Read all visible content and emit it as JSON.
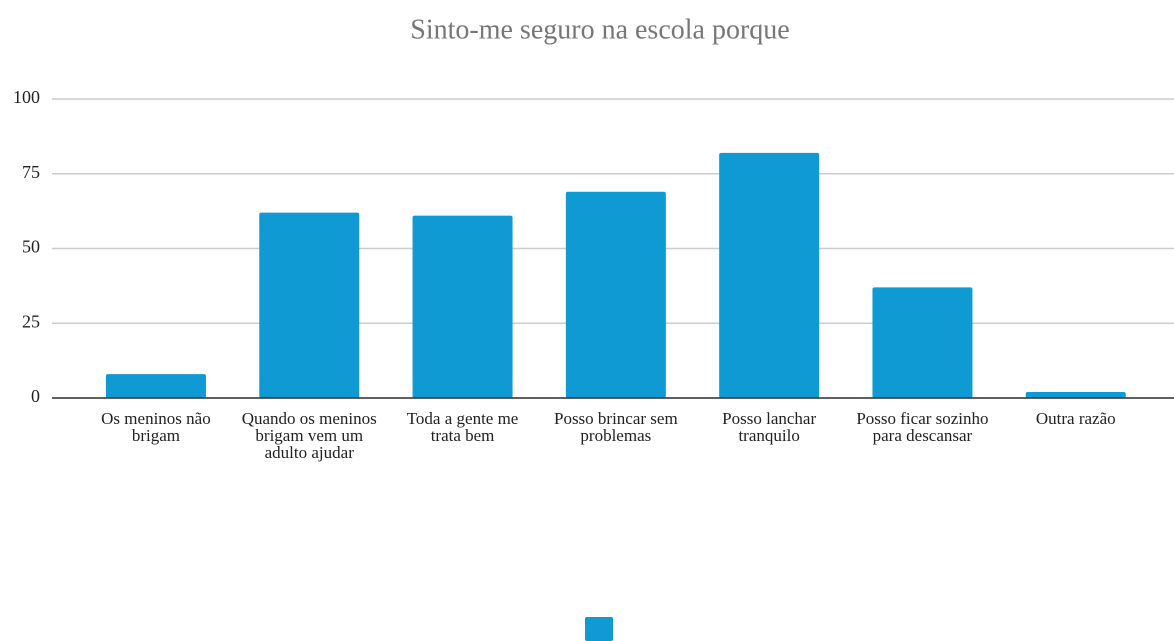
{
  "chart_data": {
    "type": "bar",
    "title": "Sinto-me seguro na escola porque",
    "categories": [
      "Os meninos não brigam",
      "Quando os meninos brigam vem um adulto ajudar",
      "Toda a gente me trata bem",
      "Posso brincar sem problemas",
      "Posso lanchar tranquilo",
      "Posso ficar sozinho para descansar",
      "Outra razão"
    ],
    "values": [
      8,
      62,
      61,
      69,
      82,
      37,
      2
    ],
    "color": "#109ad3",
    "ylim": [
      0,
      100
    ],
    "yticks": [
      0,
      25,
      50,
      75,
      100
    ],
    "grid": true
  }
}
